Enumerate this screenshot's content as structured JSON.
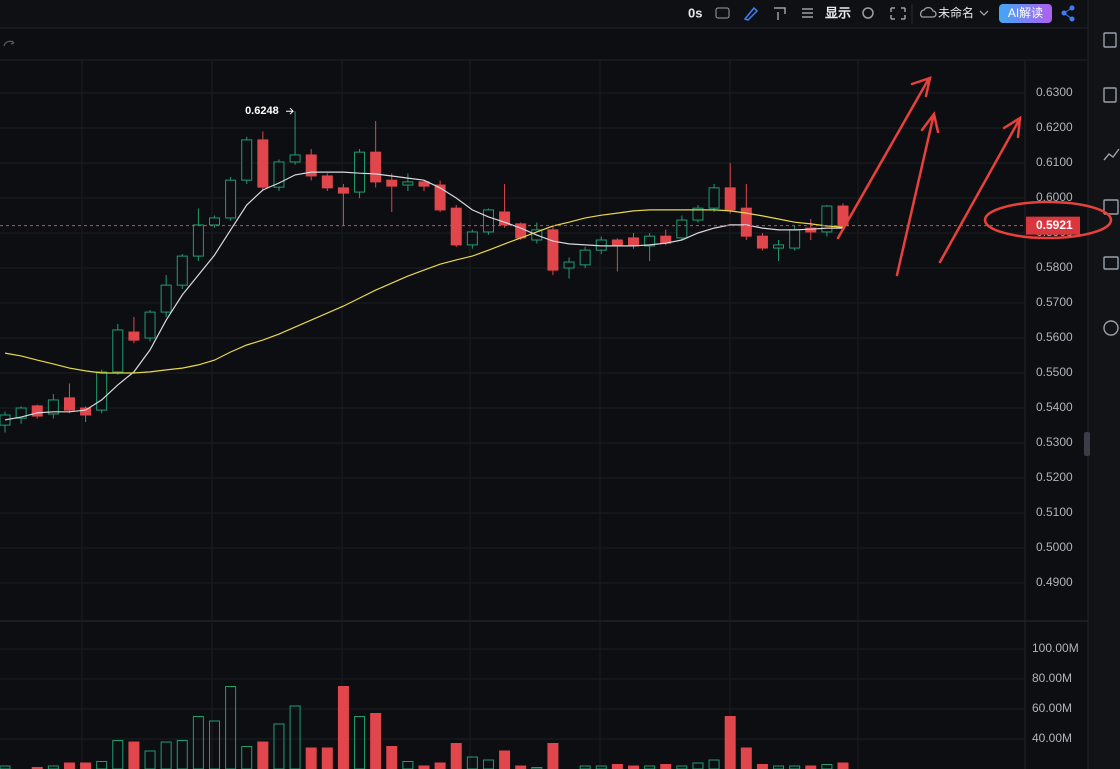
{
  "toolbar": {
    "timer": "0s",
    "display": "显示",
    "file_name": "未命名",
    "ai_button": "AI解读"
  },
  "chart_data": {
    "type": "candlestick",
    "up_color": "#1f9e6e",
    "down_color": "#e0464b",
    "ylim": [
      0.48,
      0.64
    ],
    "yticks": [
      {
        "value": 0.63,
        "label": "0.6300"
      },
      {
        "value": 0.62,
        "label": "0.6200"
      },
      {
        "value": 0.61,
        "label": "0.6100"
      },
      {
        "value": 0.6,
        "label": "0.6000"
      },
      {
        "value": 0.59,
        "label": "0.5900"
      },
      {
        "value": 0.58,
        "label": "0.5800"
      },
      {
        "value": 0.57,
        "label": "0.5700"
      },
      {
        "value": 0.56,
        "label": "0.5600"
      },
      {
        "value": 0.55,
        "label": "0.5500"
      },
      {
        "value": 0.54,
        "label": "0.5400"
      },
      {
        "value": 0.53,
        "label": "0.5300"
      },
      {
        "value": 0.52,
        "label": "0.5200"
      },
      {
        "value": 0.51,
        "label": "0.5100"
      },
      {
        "value": 0.5,
        "label": "0.5000"
      },
      {
        "value": 0.49,
        "label": "0.4900"
      }
    ],
    "open": [
      0.5351,
      0.5371,
      0.5406,
      0.5383,
      0.5429,
      0.54,
      0.5394,
      0.5503,
      0.5617,
      0.56,
      0.5674,
      0.5751,
      0.5834,
      0.5923,
      0.5943,
      0.6051,
      0.6166,
      0.6031,
      0.6103,
      0.6123,
      0.6063,
      0.6029,
      0.6017,
      0.6131,
      0.6051,
      0.6037,
      0.6046,
      0.6037,
      0.5971,
      0.5866,
      0.5903,
      0.596,
      0.5926,
      0.588,
      0.5909,
      0.58,
      0.5809,
      0.5851,
      0.588,
      0.5886,
      0.5863,
      0.5891,
      0.5886,
      0.5937,
      0.5971,
      0.6029,
      0.5971,
      0.5891,
      0.5857,
      0.5857,
      0.5914,
      0.5903,
      0.5977
    ],
    "high": [
      0.539,
      0.5405,
      0.541,
      0.544,
      0.547,
      0.5405,
      0.551,
      0.564,
      0.566,
      0.568,
      0.578,
      0.584,
      0.597,
      0.595,
      0.606,
      0.6175,
      0.619,
      0.611,
      0.6248,
      0.614,
      0.607,
      0.604,
      0.614,
      0.622,
      0.607,
      0.607,
      0.605,
      0.605,
      0.598,
      0.591,
      0.597,
      0.604,
      0.593,
      0.593,
      0.592,
      0.583,
      0.586,
      0.589,
      0.5885,
      0.59,
      0.59,
      0.591,
      0.595,
      0.598,
      0.604,
      0.61,
      0.604,
      0.59,
      0.588,
      0.592,
      0.594,
      0.598,
      0.5985
    ],
    "low": [
      0.533,
      0.5355,
      0.537,
      0.537,
      0.5385,
      0.536,
      0.5385,
      0.5495,
      0.5585,
      0.559,
      0.566,
      0.574,
      0.582,
      0.5915,
      0.5935,
      0.604,
      0.602,
      0.602,
      0.6095,
      0.605,
      0.602,
      0.592,
      0.6,
      0.603,
      0.596,
      0.602,
      0.602,
      0.596,
      0.586,
      0.5855,
      0.5895,
      0.5915,
      0.588,
      0.587,
      0.578,
      0.577,
      0.58,
      0.584,
      0.579,
      0.5855,
      0.582,
      0.5865,
      0.588,
      0.593,
      0.596,
      0.5955,
      0.588,
      0.585,
      0.582,
      0.585,
      0.588,
      0.589,
      0.5915
    ],
    "close": [
      0.538,
      0.54,
      0.5377,
      0.5423,
      0.5394,
      0.538,
      0.5503,
      0.5623,
      0.5594,
      0.5674,
      0.5751,
      0.5834,
      0.5923,
      0.5943,
      0.6051,
      0.6166,
      0.6031,
      0.6103,
      0.6123,
      0.6063,
      0.6029,
      0.6014,
      0.6131,
      0.6046,
      0.6034,
      0.6046,
      0.6034,
      0.5966,
      0.5866,
      0.5903,
      0.5966,
      0.5923,
      0.5886,
      0.5909,
      0.5794,
      0.5817,
      0.5851,
      0.588,
      0.5863,
      0.5863,
      0.5891,
      0.5871,
      0.5937,
      0.5971,
      0.6029,
      0.5966,
      0.5891,
      0.5857,
      0.5866,
      0.5909,
      0.5903,
      0.5977,
      0.5921
    ],
    "series": [
      {
        "color": "#d8d8e0",
        "values": [
          0.5366,
          0.5374,
          0.5386,
          0.5389,
          0.5389,
          0.5394,
          0.5423,
          0.5466,
          0.5503,
          0.5566,
          0.5651,
          0.5723,
          0.578,
          0.5837,
          0.5909,
          0.598,
          0.6023,
          0.6043,
          0.6066,
          0.6074,
          0.6074,
          0.6074,
          0.6071,
          0.6069,
          0.6063,
          0.6057,
          0.6051,
          0.6029,
          0.6,
          0.5966,
          0.5946,
          0.5931,
          0.5914,
          0.5894,
          0.5877,
          0.5869,
          0.5866,
          0.5863,
          0.5863,
          0.5863,
          0.5866,
          0.5871,
          0.588,
          0.59,
          0.5914,
          0.5923,
          0.5923,
          0.5914,
          0.5909,
          0.5909,
          0.5911,
          0.5914,
          0.5914
        ]
      },
      {
        "color": "#e8d84a",
        "values": [
          0.5557,
          0.5549,
          0.5537,
          0.5526,
          0.5514,
          0.5506,
          0.55,
          0.55,
          0.55,
          0.5503,
          0.5509,
          0.5514,
          0.5523,
          0.5537,
          0.556,
          0.558,
          0.5594,
          0.5611,
          0.5631,
          0.5651,
          0.5671,
          0.5691,
          0.5714,
          0.5737,
          0.5757,
          0.5777,
          0.5794,
          0.5811,
          0.5823,
          0.5834,
          0.5851,
          0.5869,
          0.5886,
          0.5903,
          0.592,
          0.5931,
          0.5943,
          0.5951,
          0.5957,
          0.5963,
          0.5966,
          0.5966,
          0.5966,
          0.5966,
          0.5966,
          0.5963,
          0.5957,
          0.5949,
          0.594,
          0.5931,
          0.5926,
          0.592,
          0.5917
        ]
      }
    ],
    "high_label": 0.6248,
    "last_price": 0.5921,
    "volume": {
      "ylim": [
        20,
        113
      ],
      "yticks": [
        {
          "value": 100,
          "label": "100.00M"
        },
        {
          "value": 80,
          "label": "80.00M"
        },
        {
          "value": 60,
          "label": "60.00M"
        },
        {
          "value": 40,
          "label": "40.00M"
        }
      ],
      "values": [
        22,
        20,
        21,
        22,
        24,
        24,
        25,
        39,
        38,
        32,
        38,
        39,
        55,
        52,
        75,
        35,
        38,
        50,
        62,
        34,
        34,
        75,
        55,
        57,
        35,
        25,
        22,
        24,
        37,
        28,
        26,
        32,
        22,
        21,
        37,
        20,
        22,
        22,
        23,
        22,
        22,
        23,
        22,
        24,
        26,
        55,
        34,
        23,
        22,
        22,
        22,
        23,
        24
      ]
    }
  }
}
